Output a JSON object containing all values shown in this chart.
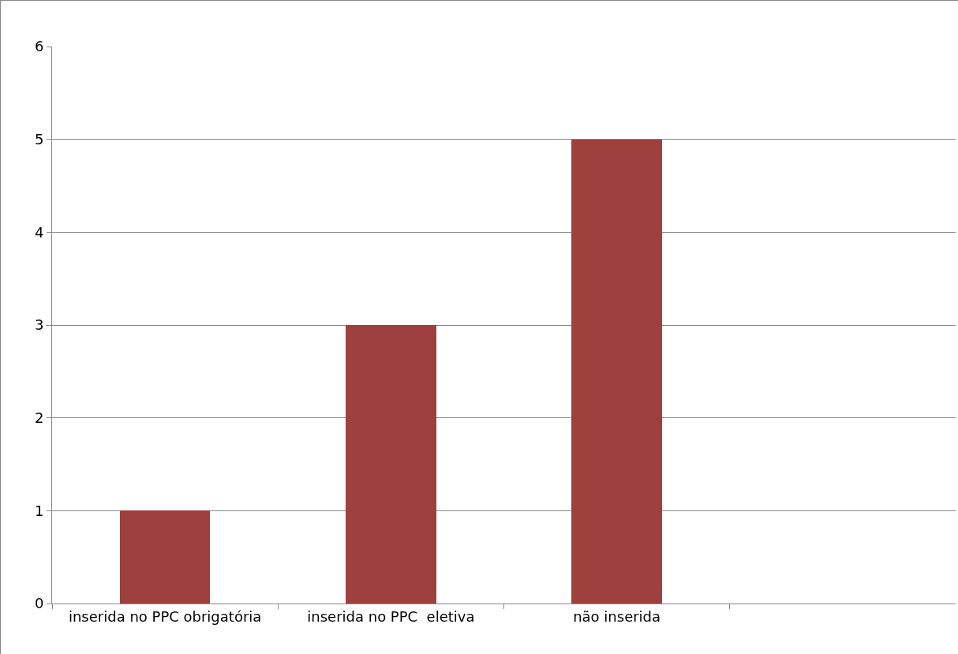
{
  "chart_data": {
    "type": "bar",
    "categories": [
      "inserida no PPC obrigatória",
      "inserida no PPC  eletiva",
      "não inserida",
      null
    ],
    "values": [
      1,
      3,
      5,
      null
    ],
    "color": "#9e403e",
    "ylim": [
      0,
      6
    ],
    "yticks": [
      0,
      1,
      2,
      3,
      4,
      5,
      6
    ],
    "grid": "y"
  }
}
